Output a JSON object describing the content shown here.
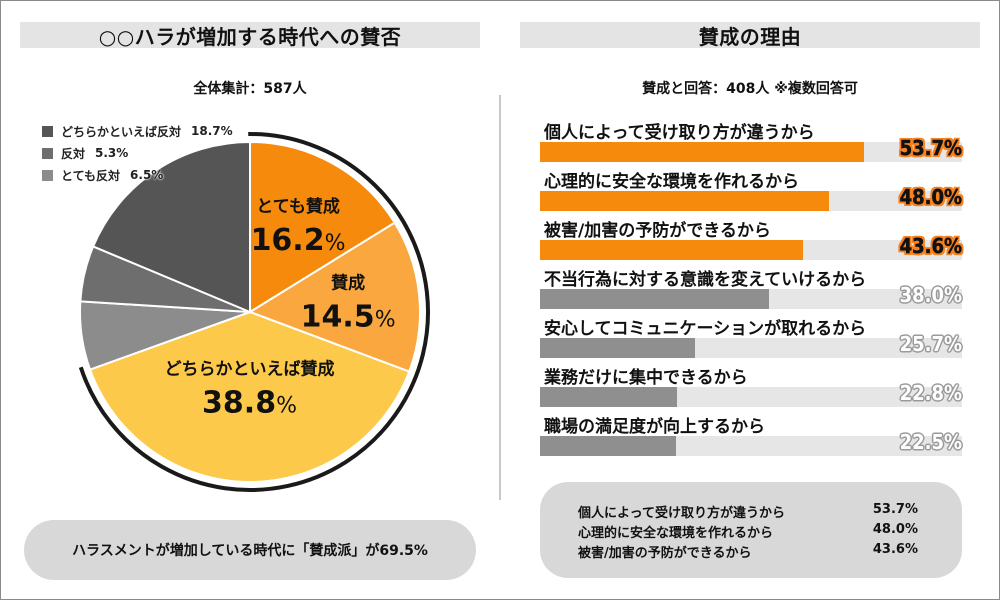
{
  "left": {
    "title": "○○ハラが増加する時代への賛否",
    "subtitle": "全体集計：587人",
    "summary": "ハラスメントが増加している時代に「賛成派」が69.5%"
  },
  "right": {
    "title": "賛成の理由",
    "subtitle": "賛成と回答：408人 ※複数回答可",
    "top_reasons": [
      {
        "label": "個人によって受け取り方が違うから",
        "value": "53.7%"
      },
      {
        "label": "心理的に安全な環境を作れるから",
        "value": "48.0%"
      },
      {
        "label": "被害/加害の予防ができるから",
        "value": "43.6%"
      }
    ]
  },
  "colors": {
    "orange": "#f58a0c",
    "light_orange": "#f9a73e",
    "yellow": "#fcc94a",
    "gray_light": "#8c8c8c",
    "gray_mid": "#6e6e6e",
    "gray_dark": "#555555",
    "bar_gray": "#8f8f8f"
  },
  "chart_data": [
    {
      "type": "pie",
      "unit": "%",
      "slices": [
        {
          "label": "とても賛成",
          "value": 16.2,
          "display": "16.2",
          "color": "#f58a0c",
          "labeled_inside": true
        },
        {
          "label": "賛成",
          "value": 14.5,
          "display": "14.5",
          "color": "#f9a73e",
          "labeled_inside": true
        },
        {
          "label": "どちらかといえば賛成",
          "value": 38.8,
          "display": "38.8",
          "color": "#fcc94a",
          "labeled_inside": true
        },
        {
          "label": "とても反対",
          "value": 6.5,
          "display": "6.5%",
          "color": "#8c8c8c",
          "labeled_inside": false
        },
        {
          "label": "反対",
          "value": 5.3,
          "display": "5.3%",
          "color": "#6e6e6e",
          "labeled_inside": false
        },
        {
          "label": "どちらかといえば反対",
          "value": 18.7,
          "display": "18.7%",
          "color": "#555555",
          "labeled_inside": false
        }
      ],
      "legend": [
        {
          "label": "どちらかといえば反対",
          "value": "18.7%",
          "color": "#555555"
        },
        {
          "label": "反対",
          "value": "5.3%",
          "color": "#6e6e6e"
        },
        {
          "label": "とても反対",
          "value": "6.5%",
          "color": "#8c8c8c"
        }
      ],
      "legend_position": "top-left"
    },
    {
      "type": "bar",
      "orientation": "horizontal",
      "xlim": [
        0,
        70
      ],
      "categories": [
        "個人によって受け取り方が違うから",
        "心理的に安全な環境を作れるから",
        "被害/加害の予防ができるから",
        "不当行為に対する意識を変えていけるから",
        "安心してコミュニケーションが取れるから",
        "業務だけに集中できるから",
        "職場の満足度が向上するから"
      ],
      "values": [
        53.7,
        48.0,
        43.6,
        38.0,
        25.7,
        22.8,
        22.5
      ],
      "value_labels": [
        "53.7%",
        "48.0%",
        "43.6%",
        "38.0%",
        "25.7%",
        "22.8%",
        "22.5%"
      ],
      "highlighted": [
        true,
        true,
        true,
        false,
        false,
        false,
        false
      ]
    }
  ]
}
